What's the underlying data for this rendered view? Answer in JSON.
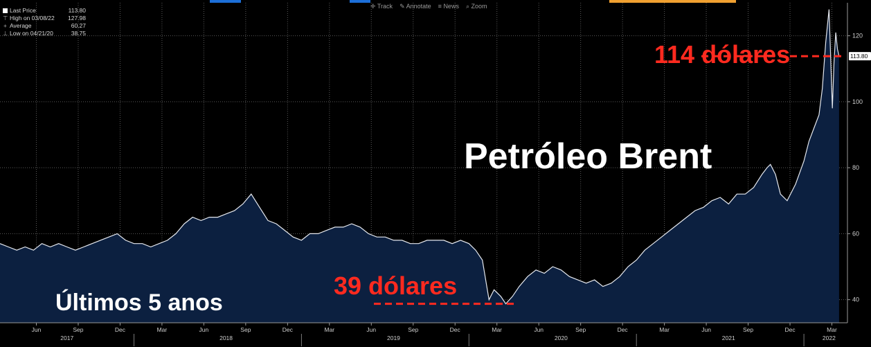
{
  "toolbar": {
    "track": "Track",
    "annotate": "Annotate",
    "news": "News",
    "zoom": "Zoom"
  },
  "legend": {
    "last_label": "Last Price",
    "last_value": "113.80",
    "high_label": "High on 03/08/22",
    "high_value": "127.98",
    "avg_label": "Average",
    "avg_value": "60.27",
    "low_label": "Low on 04/21/20",
    "low_value": "38.75"
  },
  "annotations": {
    "title": "Petróleo Brent",
    "subtitle": "Últimos 5 anos",
    "high_note": "114 dólares",
    "low_note": "39 dólares"
  },
  "colors": {
    "background": "#000000",
    "area_fill": "#0c2040",
    "line": "#e6e9ef",
    "grid": "#5a5a5a",
    "annotation_red": "#ff2a1f",
    "topbar_blue": "#1c6fd8",
    "topbar_orange": "#f0a030"
  },
  "chart_data": {
    "type": "area",
    "ylim": [
      33,
      130
    ],
    "yticks": [
      40,
      60,
      80,
      100,
      120
    ],
    "last_price_label": "113.80",
    "month_ticks": [
      {
        "label": "Jun",
        "t": 2017.417
      },
      {
        "label": "Sep",
        "t": 2017.667
      },
      {
        "label": "Dec",
        "t": 2017.917
      },
      {
        "label": "Mar",
        "t": 2018.167
      },
      {
        "label": "Jun",
        "t": 2018.417
      },
      {
        "label": "Sep",
        "t": 2018.667
      },
      {
        "label": "Dec",
        "t": 2018.917
      },
      {
        "label": "Mar",
        "t": 2019.167
      },
      {
        "label": "Jun",
        "t": 2019.417
      },
      {
        "label": "Sep",
        "t": 2019.667
      },
      {
        "label": "Dec",
        "t": 2019.917
      },
      {
        "label": "Mar",
        "t": 2020.167
      },
      {
        "label": "Jun",
        "t": 2020.417
      },
      {
        "label": "Sep",
        "t": 2020.667
      },
      {
        "label": "Dec",
        "t": 2020.917
      },
      {
        "label": "Mar",
        "t": 2021.167
      },
      {
        "label": "Jun",
        "t": 2021.417
      },
      {
        "label": "Sep",
        "t": 2021.667
      },
      {
        "label": "Dec",
        "t": 2021.917
      },
      {
        "label": "Mar",
        "t": 2022.167
      }
    ],
    "year_ticks": [
      {
        "label": "2017",
        "t": 2017.6
      },
      {
        "label": "2018",
        "t": 2018.55
      },
      {
        "label": "2019",
        "t": 2019.55
      },
      {
        "label": "2020",
        "t": 2020.55
      },
      {
        "label": "2021",
        "t": 2021.55
      },
      {
        "label": "2022",
        "t": 2022.15
      }
    ],
    "year_separators": [
      2018.0,
      2019.0,
      2020.0,
      2021.0,
      2022.0
    ],
    "annotation_levels": {
      "high": 113.8,
      "low": 38.75
    },
    "series": [
      {
        "x": [
          2017.2,
          2017.25,
          2017.3,
          2017.35,
          2017.4,
          2017.45,
          2017.5,
          2017.55,
          2017.6,
          2017.65,
          2017.7,
          2017.75,
          2017.8,
          2017.85,
          2017.9,
          2017.95,
          2018.0,
          2018.05,
          2018.1,
          2018.15,
          2018.2,
          2018.25,
          2018.3,
          2018.35,
          2018.4,
          2018.45,
          2018.5,
          2018.55,
          2018.6,
          2018.65,
          2018.7,
          2018.75,
          2018.8,
          2018.85,
          2018.9,
          2018.95,
          2019.0,
          2019.05,
          2019.1,
          2019.15,
          2019.2,
          2019.25,
          2019.3,
          2019.35,
          2019.4,
          2019.45,
          2019.5,
          2019.55,
          2019.6,
          2019.65,
          2019.7,
          2019.75,
          2019.8,
          2019.85,
          2019.9,
          2019.95,
          2020.0,
          2020.04,
          2020.08,
          2020.12,
          2020.15,
          2020.19,
          2020.22,
          2020.26,
          2020.3,
          2020.35,
          2020.4,
          2020.45,
          2020.5,
          2020.55,
          2020.6,
          2020.65,
          2020.7,
          2020.75,
          2020.8,
          2020.85,
          2020.9,
          2020.95,
          2021.0,
          2021.05,
          2021.1,
          2021.15,
          2021.2,
          2021.25,
          2021.3,
          2021.35,
          2021.4,
          2021.45,
          2021.5,
          2021.55,
          2021.6,
          2021.65,
          2021.7,
          2021.75,
          2021.78,
          2021.8,
          2021.83,
          2021.86,
          2021.9,
          2021.95,
          2022.0,
          2022.03,
          2022.06,
          2022.09,
          2022.11,
          2022.13,
          2022.15,
          2022.17,
          2022.18,
          2022.19,
          2022.2,
          2022.21
        ],
        "y": [
          57,
          56,
          55,
          56,
          55,
          57,
          56,
          57,
          56,
          55,
          56,
          57,
          58,
          59,
          60,
          58,
          57,
          57,
          56,
          57,
          58,
          60,
          63,
          65,
          64,
          65,
          65,
          66,
          67,
          69,
          72,
          68,
          64,
          63,
          61,
          59,
          58,
          60,
          60,
          61,
          62,
          62,
          63,
          62,
          60,
          59,
          59,
          58,
          58,
          57,
          57,
          58,
          58,
          58,
          57,
          58,
          57,
          55,
          52,
          40,
          43,
          41,
          38.75,
          41,
          44,
          47,
          49,
          48,
          50,
          49,
          47,
          46,
          45,
          46,
          44,
          45,
          47,
          50,
          52,
          55,
          57,
          59,
          61,
          63,
          65,
          67,
          68,
          70,
          71,
          69,
          72,
          72,
          74,
          78,
          80,
          81,
          78,
          72,
          70,
          75,
          82,
          88,
          92,
          96,
          104,
          118,
          127.98,
          98,
          112,
          121,
          116,
          113.8
        ]
      }
    ]
  }
}
